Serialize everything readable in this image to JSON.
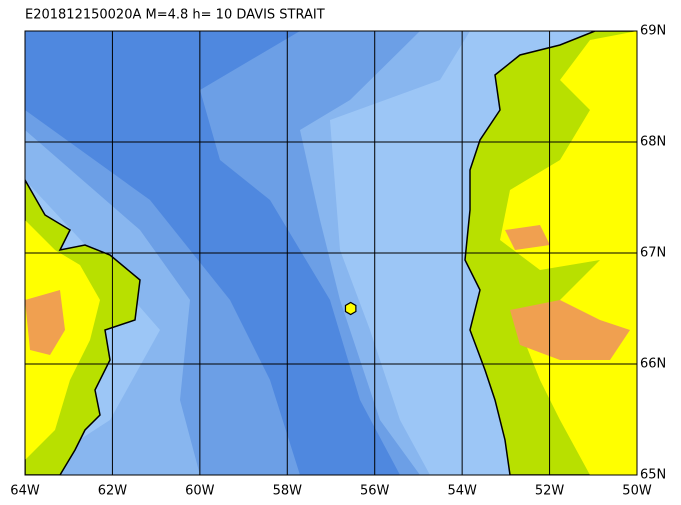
{
  "map": {
    "title": "E201812150020A M=4.8 h= 10 DAVIS STRAIT",
    "lon_range": [
      -64,
      -50
    ],
    "lat_range": [
      65,
      69
    ],
    "lon_ticks": [
      {
        "value": -64,
        "label": "64W"
      },
      {
        "value": -62,
        "label": "62W"
      },
      {
        "value": -60,
        "label": "60W"
      },
      {
        "value": -58,
        "label": "58W"
      },
      {
        "value": -56,
        "label": "56W"
      },
      {
        "value": -54,
        "label": "54W"
      },
      {
        "value": -52,
        "label": "52W"
      },
      {
        "value": -50,
        "label": "50W"
      }
    ],
    "lat_ticks": [
      {
        "value": 69,
        "label": "69N"
      },
      {
        "value": 68,
        "label": "68N"
      },
      {
        "value": 67,
        "label": "67N"
      },
      {
        "value": 66,
        "label": "66N"
      },
      {
        "value": 65,
        "label": "65N"
      }
    ],
    "event": {
      "lon": -56.55,
      "lat": 66.5
    }
  }
}
